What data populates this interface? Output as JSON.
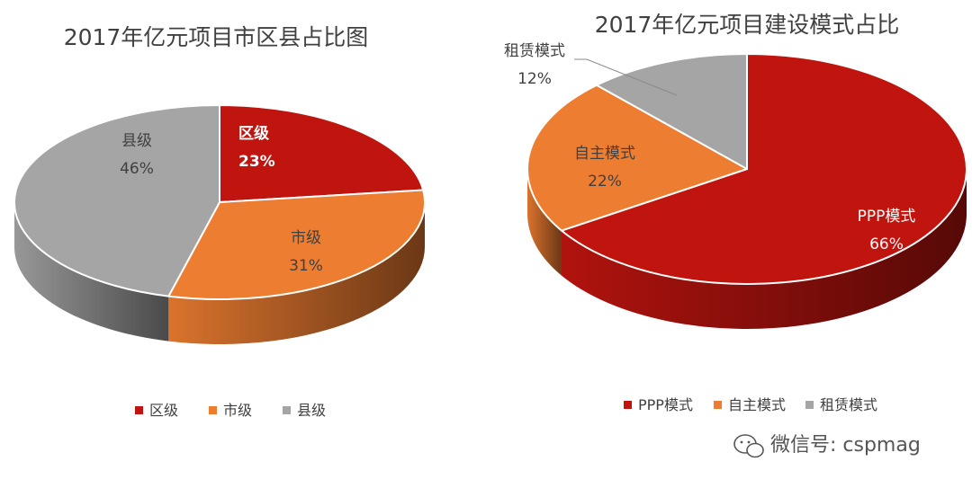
{
  "chart_data": [
    {
      "type": "pie",
      "title": "2017年亿元项目市区县占比图",
      "slices": [
        {
          "name": "区级",
          "value": 23,
          "label": "23%",
          "color": "#c0150f"
        },
        {
          "name": "市级",
          "value": 31,
          "label": "31%",
          "color": "#ed7d31"
        },
        {
          "name": "县级",
          "value": 46,
          "label": "46%",
          "color": "#a5a5a5"
        }
      ],
      "legend": [
        "区级",
        "市级",
        "县级"
      ],
      "legend_position": "bottom",
      "style": "3d"
    },
    {
      "type": "pie",
      "title": "2017年亿元项目建设模式占比",
      "slices": [
        {
          "name": "PPP模式",
          "value": 66,
          "label": "66%",
          "color": "#c0150f"
        },
        {
          "name": "自主模式",
          "value": 22,
          "label": "22%",
          "color": "#ed7d31"
        },
        {
          "name": "租赁模式",
          "value": 12,
          "label": "12%",
          "color": "#a5a5a5"
        }
      ],
      "legend": [
        "PPP模式",
        "自主模式",
        "租赁模式"
      ],
      "legend_position": "bottom",
      "style": "3d"
    }
  ],
  "watermark": {
    "text": "微信号: cspmag",
    "icon": "wechat-icon"
  }
}
